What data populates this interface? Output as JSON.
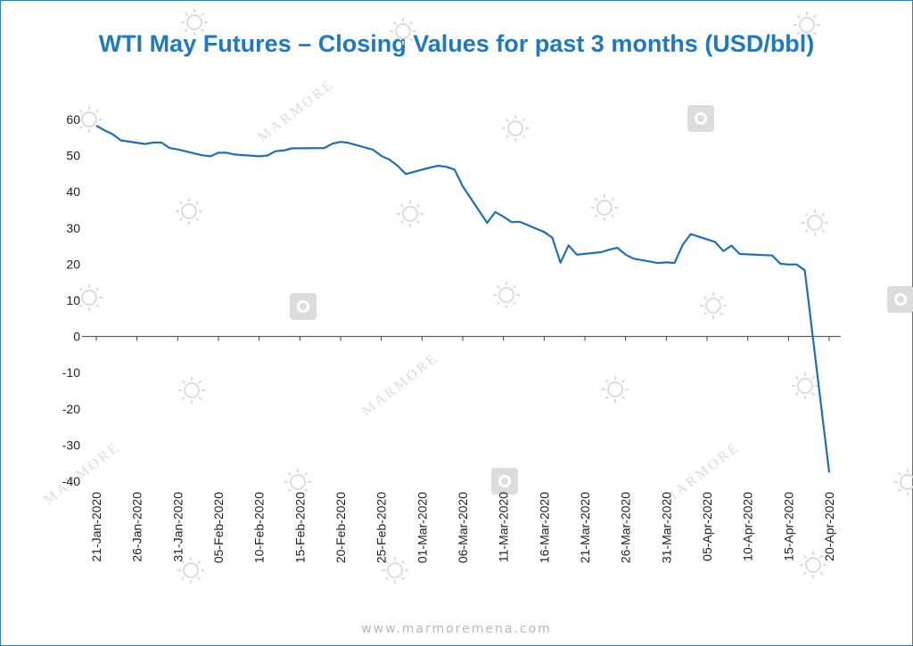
{
  "page": {
    "footer_url": "www.marmoremena.com",
    "watermark_text": "MARMORE"
  },
  "colors": {
    "frame": "#2f7fc1",
    "title": "#1f78c1",
    "line": "#1f6fb4",
    "axis": "#404040",
    "watermark": "#dcdcdc"
  },
  "chart_data": {
    "type": "line",
    "title": "WTI May Futures – Closing Values for past 3 months (USD/bbl)",
    "xlabel": "",
    "ylabel": "",
    "ylim": [
      -40,
      60
    ],
    "yticks": [
      60,
      50,
      40,
      30,
      20,
      10,
      0,
      -10,
      -20,
      -30,
      -40
    ],
    "xlim": [
      "2020-01-21",
      "2020-04-20"
    ],
    "x_tick_labels": [
      "21-Jan-2020",
      "26-Jan-2020",
      "31-Jan-2020",
      "05-Feb-2020",
      "10-Feb-2020",
      "15-Feb-2020",
      "20-Feb-2020",
      "25-Feb-2020",
      "01-Mar-2020",
      "06-Mar-2020",
      "11-Mar-2020",
      "16-Mar-2020",
      "21-Mar-2020",
      "26-Mar-2020",
      "31-Mar-2020",
      "05-Apr-2020",
      "10-Apr-2020",
      "15-Apr-2020",
      "20-Apr-2020"
    ],
    "x_tick_dates": [
      "2020-01-21",
      "2020-01-26",
      "2020-01-31",
      "2020-02-05",
      "2020-02-10",
      "2020-02-15",
      "2020-02-20",
      "2020-02-25",
      "2020-03-01",
      "2020-03-06",
      "2020-03-11",
      "2020-03-16",
      "2020-03-21",
      "2020-03-26",
      "2020-03-31",
      "2020-04-05",
      "2020-04-10",
      "2020-04-15",
      "2020-04-20"
    ],
    "legend": "none",
    "grid": false,
    "series": [
      {
        "points": [
          [
            "2020-01-21",
            58.3
          ],
          [
            "2020-01-22",
            57.0
          ],
          [
            "2020-01-23",
            55.9
          ],
          [
            "2020-01-24",
            54.2
          ],
          [
            "2020-01-27",
            53.2
          ],
          [
            "2020-01-28",
            53.6
          ],
          [
            "2020-01-29",
            53.6
          ],
          [
            "2020-01-30",
            52.1
          ],
          [
            "2020-01-31",
            51.7
          ],
          [
            "2020-02-03",
            50.1
          ],
          [
            "2020-02-04",
            49.8
          ],
          [
            "2020-02-05",
            50.8
          ],
          [
            "2020-02-06",
            50.8
          ],
          [
            "2020-02-07",
            50.3
          ],
          [
            "2020-02-10",
            49.8
          ],
          [
            "2020-02-11",
            50.0
          ],
          [
            "2020-02-12",
            51.2
          ],
          [
            "2020-02-13",
            51.4
          ],
          [
            "2020-02-14",
            52.0
          ],
          [
            "2020-02-18",
            52.1
          ],
          [
            "2020-02-19",
            53.3
          ],
          [
            "2020-02-20",
            53.8
          ],
          [
            "2020-02-21",
            53.5
          ],
          [
            "2020-02-24",
            51.6
          ],
          [
            "2020-02-25",
            49.9
          ],
          [
            "2020-02-26",
            48.9
          ],
          [
            "2020-02-27",
            47.2
          ],
          [
            "2020-02-28",
            44.9
          ],
          [
            "2020-03-02",
            46.7
          ],
          [
            "2020-03-03",
            47.2
          ],
          [
            "2020-03-04",
            46.9
          ],
          [
            "2020-03-05",
            46.1
          ],
          [
            "2020-03-06",
            41.5
          ],
          [
            "2020-03-09",
            31.4
          ],
          [
            "2020-03-10",
            34.4
          ],
          [
            "2020-03-11",
            33.1
          ],
          [
            "2020-03-12",
            31.6
          ],
          [
            "2020-03-13",
            31.7
          ],
          [
            "2020-03-16",
            28.9
          ],
          [
            "2020-03-17",
            27.3
          ],
          [
            "2020-03-18",
            20.4
          ],
          [
            "2020-03-19",
            25.2
          ],
          [
            "2020-03-20",
            22.6
          ],
          [
            "2020-03-23",
            23.3
          ],
          [
            "2020-03-24",
            24.0
          ],
          [
            "2020-03-25",
            24.5
          ],
          [
            "2020-03-26",
            22.6
          ],
          [
            "2020-03-27",
            21.5
          ],
          [
            "2020-03-30",
            20.3
          ],
          [
            "2020-03-31",
            20.5
          ],
          [
            "2020-04-01",
            20.3
          ],
          [
            "2020-04-02",
            25.3
          ],
          [
            "2020-04-03",
            28.3
          ],
          [
            "2020-04-06",
            26.1
          ],
          [
            "2020-04-07",
            23.6
          ],
          [
            "2020-04-08",
            25.1
          ],
          [
            "2020-04-09",
            22.8
          ],
          [
            "2020-04-13",
            22.4
          ],
          [
            "2020-04-14",
            20.1
          ],
          [
            "2020-04-15",
            19.9
          ],
          [
            "2020-04-16",
            19.9
          ],
          [
            "2020-04-17",
            18.3
          ],
          [
            "2020-04-20",
            -37.6
          ]
        ]
      }
    ]
  }
}
